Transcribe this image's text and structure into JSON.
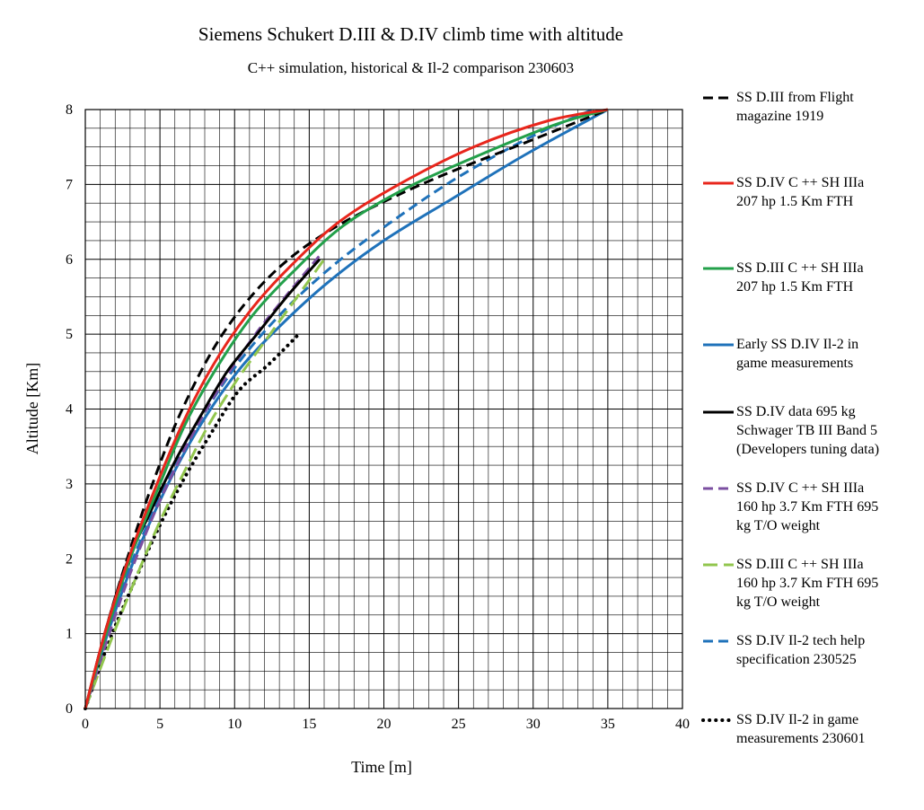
{
  "chart_data": {
    "type": "line",
    "title": "Siemens Schukert D.III & D.IV climb time with altitude",
    "subtitle": "C++ simulation, historical & Il-2 comparison 230603",
    "xlabel": "Time  [m]",
    "ylabel": "Altitude [Km]",
    "xlim": [
      0,
      40
    ],
    "ylim": [
      0,
      8
    ],
    "x_ticks": [
      "0",
      "5",
      "10",
      "15",
      "20",
      "25",
      "30",
      "35",
      "40"
    ],
    "y_ticks": [
      "0",
      "1",
      "2",
      "3",
      "4",
      "5",
      "6",
      "7",
      "8"
    ],
    "grid": true,
    "legend_position": "right",
    "series": [
      {
        "name": "SS D.III from Flight\nmagazine 1919",
        "color": "#000000",
        "style": "dash",
        "x": [
          0,
          1.3,
          2.8,
          4.5,
          6.5,
          9.2,
          12.5,
          16.5,
          22.5,
          30,
          35
        ],
        "y": [
          0,
          1,
          2,
          3,
          4,
          5,
          5.8,
          6.4,
          7.0,
          7.6,
          8.0
        ]
      },
      {
        "name": "SS D.IV C ++ SH IIIa\n207 hp 1.5 Km FTH",
        "color": "#e8261c",
        "style": "solid",
        "x": [
          0,
          1.3,
          2.9,
          4.6,
          6.5,
          8.6,
          11.0,
          13.7,
          17.0,
          21.0,
          26.0,
          31.0,
          35
        ],
        "y": [
          0,
          1,
          2,
          2.9,
          3.8,
          4.6,
          5.3,
          5.9,
          6.5,
          7.0,
          7.5,
          7.85,
          8.0
        ]
      },
      {
        "name": "SS D.III C ++ SH IIIa\n207 hp 1.5 Km FTH",
        "color": "#23a04a",
        "style": "solid",
        "x": [
          0,
          1.4,
          3.0,
          4.8,
          6.7,
          8.8,
          11.2,
          14.0,
          17.3,
          21.5,
          26.5,
          31.5,
          35
        ],
        "y": [
          0,
          1,
          2,
          2.9,
          3.8,
          4.55,
          5.25,
          5.85,
          6.45,
          6.95,
          7.4,
          7.8,
          8.0
        ]
      },
      {
        "name": "Early SS D.IV Il-2 in\ngame measurements",
        "color": "#1f72ba",
        "style": "solid",
        "x": [
          0,
          1.5,
          3.3,
          5.3,
          7.6,
          10.2,
          13.0,
          16.3,
          20.0,
          24.5,
          29.5,
          35
        ],
        "y": [
          0,
          1,
          2,
          2.9,
          3.75,
          4.5,
          5.1,
          5.7,
          6.25,
          6.8,
          7.4,
          8.0
        ]
      },
      {
        "name": "SS D.IV data 695 kg\nSchwager TB III Band 5\n(Developers tuning data)",
        "color": "#000000",
        "style": "solid",
        "x": [
          0,
          1.3,
          2.7,
          4.3,
          6.0,
          7.7,
          9.5,
          11.5,
          13.5,
          15.7
        ],
        "y": [
          0,
          1,
          1.9,
          2.6,
          3.3,
          3.9,
          4.5,
          5.0,
          5.5,
          6.0
        ]
      },
      {
        "name": "SS D.IV C ++ SH IIIa\n160 hp 3.7 Km FTH 695\nkg T/O weight",
        "color": "#7b4fa1",
        "style": "dash",
        "x": [
          0,
          1.6,
          3.0,
          4.5,
          6.0,
          7.7,
          9.5,
          11.4,
          13.4,
          15.7
        ],
        "y": [
          0,
          1,
          1.8,
          2.55,
          3.2,
          3.85,
          4.45,
          5.0,
          5.5,
          6.05
        ]
      },
      {
        "name": "SS D.III C ++ SH IIIa\n160 hp 3.7 Km FTH 695\nkg T/O weight",
        "color": "#92c64e",
        "style": "longdash",
        "x": [
          0,
          1.8,
          3.4,
          5.0,
          6.6,
          8.3,
          10.2,
          12.2,
          14.2,
          16.0
        ],
        "y": [
          0,
          0.95,
          1.75,
          2.5,
          3.15,
          3.8,
          4.4,
          4.95,
          5.5,
          6.0
        ]
      },
      {
        "name": "SS D.IV Il-2 tech help\nspecification 230525",
        "color": "#1f72ba",
        "style": "dash",
        "x": [
          0,
          1.5,
          3.2,
          5.2,
          7.4,
          10.0,
          13.0,
          16.5,
          20.5,
          25.0,
          30.0,
          34.0
        ],
        "y": [
          0,
          1,
          2,
          2.9,
          3.75,
          4.55,
          5.25,
          5.9,
          6.5,
          7.1,
          7.65,
          8.0
        ]
      },
      {
        "name": "SS D.IV Il-2 in game\nmeasurements 230601",
        "color": "#000000",
        "style": "dot",
        "x": [
          0,
          1.6,
          3.3,
          5.0,
          6.7,
          8.5,
          10.3,
          12.3,
          14.3
        ],
        "y": [
          0,
          0.9,
          1.7,
          2.45,
          3.1,
          3.7,
          4.25,
          4.6,
          5.0
        ]
      }
    ]
  }
}
